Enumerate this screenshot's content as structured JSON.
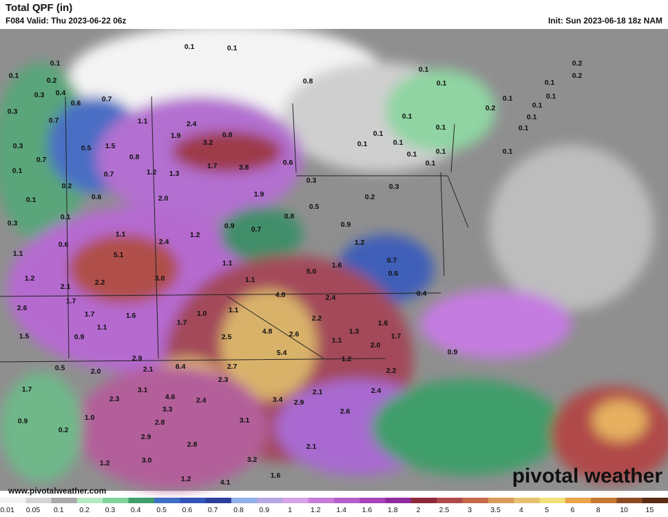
{
  "header": {
    "title": "Total QPF (in)",
    "valid": "F084 Valid: Thu 2023-06-22 06z",
    "init": "Init: Sun 2023-06-18 18z NAM"
  },
  "map": {
    "labels": [
      "0.1",
      "0.1",
      "0.1",
      "0.1",
      "0.2",
      "0.3",
      "0.4",
      "0.6",
      "0.7",
      "0.3",
      "0.7",
      "1.1",
      "2.4",
      "0.3",
      "0.7",
      "0.5",
      "1.5",
      "1.9",
      "0.8",
      "3.2",
      "0.8",
      "1.7",
      "3.8",
      "0.6",
      "0.1",
      "0.7",
      "1.2",
      "1.3",
      "0.2",
      "0.3",
      "0.1",
      "0.6",
      "2.0",
      "1.9",
      "0.5",
      "0.2",
      "0.3",
      "0.1",
      "0.3",
      "0.9",
      "0.7",
      "0.8",
      "0.9",
      "1.1",
      "1.2",
      "2.4",
      "0.6",
      "1.2",
      "1.1",
      "5.1",
      "1.1",
      "1.6",
      "0.7",
      "1.2",
      "2.2",
      "3.0",
      "1.1",
      "5.0",
      "0.6",
      "2.1",
      "4.8",
      "2.4",
      "0.4",
      "1.7",
      "2.6",
      "1.0",
      "1.1",
      "1.7",
      "1.1",
      "1.6",
      "1.7",
      "2.2",
      "1.6",
      "0.9",
      "1.5",
      "2.5",
      "4.8",
      "2.6",
      "1.1",
      "1.3",
      "1.7",
      "2.0",
      "5.4",
      "1.2",
      "0.9",
      "2.9",
      "0.5",
      "2.0",
      "2.1",
      "6.4",
      "2.7",
      "2.2",
      "2.3",
      "1.7",
      "3.1",
      "2.1",
      "2.4",
      "2.3",
      "4.6",
      "2.4",
      "3.4",
      "2.9",
      "3.3",
      "1.0",
      "0.9",
      "2.6",
      "2.8",
      "3.1",
      "0.2",
      "2.9",
      "2.8",
      "2.1",
      "3.0",
      "3.2",
      "1.2",
      "1.2",
      "4.1",
      "1.6",
      "0.8",
      "0.1",
      "0.1",
      "0.2",
      "0.2",
      "0.1",
      "0.1",
      "0.2",
      "0.1",
      "0.1",
      "0.1",
      "0.1",
      "0.1",
      "0.1",
      "0.1",
      "0.1",
      "0.1",
      "0.1",
      "0.1",
      "0.1",
      "0.1"
    ]
  },
  "colorbar": {
    "ticks": [
      "0.01",
      "0.05",
      "0.1",
      "0.2",
      "0.3",
      "0.4",
      "0.5",
      "0.6",
      "0.7",
      "0.8",
      "0.9",
      "1",
      "1.2",
      "1.4",
      "1.6",
      "1.8",
      "2",
      "2.5",
      "3",
      "3.5",
      "4",
      "5",
      "6",
      "8",
      "10",
      "15"
    ],
    "colors": [
      "#f2f2f2",
      "#d4d4d4",
      "#a9a9a9",
      "#b4e8c0",
      "#7fd39a",
      "#3f9e6a",
      "#3f6fc4",
      "#3455b8",
      "#2a3f9a",
      "#8fb0e8",
      "#b8a6e6",
      "#d7a3e8",
      "#c77cd9",
      "#b35fcc",
      "#a444b8",
      "#8f2c9c",
      "#8c2a3a",
      "#b04a4a",
      "#c46a4a",
      "#d99a5a",
      "#e6c270",
      "#f2e07a",
      "#e9a34a",
      "#c87830",
      "#8e4a22",
      "#5a2a12"
    ]
  },
  "footer": {
    "website": "www.pivotalweather.com",
    "logo": "pivotal weather"
  }
}
